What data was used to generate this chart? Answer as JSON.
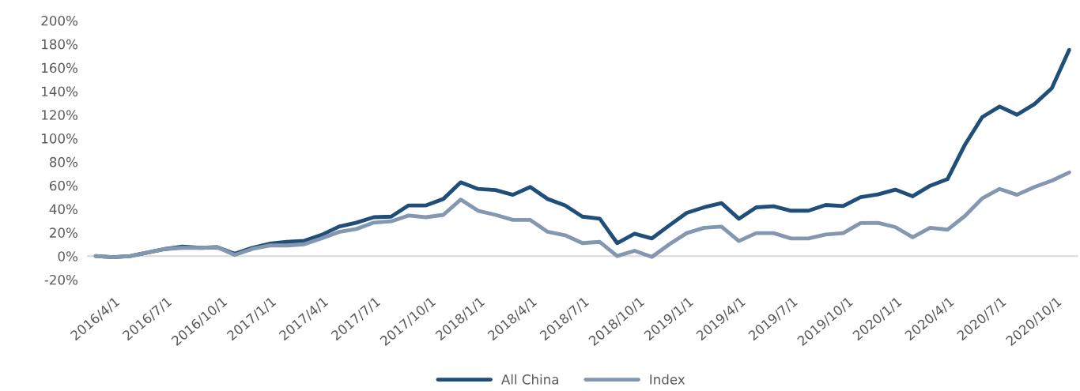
{
  "chart_data": {
    "type": "line",
    "categories": [
      "2016/4/1",
      null,
      null,
      "2016/7/1",
      null,
      null,
      "2016/10/1",
      null,
      null,
      "2017/1/1",
      null,
      null,
      "2017/4/1",
      null,
      null,
      "2017/7/1",
      null,
      null,
      "2017/10/1",
      null,
      null,
      "2018/1/1",
      null,
      null,
      "2018/4/1",
      null,
      null,
      "2018/7/1",
      null,
      null,
      "2018/10/1",
      null,
      null,
      "2019/1/1",
      null,
      null,
      "2019/4/1",
      null,
      null,
      "2019/7/1",
      null,
      null,
      "2019/10/1",
      null,
      null,
      "2020/1/1",
      null,
      null,
      "2020/4/1",
      null,
      null,
      "2020/7/1",
      null,
      null,
      "2020/10/1",
      null,
      null
    ],
    "series": [
      {
        "name": "All China",
        "color": "#1f4e79",
        "values": [
          0,
          -1,
          0,
          3,
          6,
          8,
          7,
          7.5,
          2,
          7,
          10.5,
          12,
          13,
          18,
          25,
          28.4,
          33,
          33.5,
          43,
          43,
          48.5,
          62.6,
          57,
          56,
          52,
          58.6,
          48.5,
          43,
          33.5,
          31.7,
          11,
          19,
          15,
          26,
          36.7,
          41.4,
          45,
          31.7,
          41.4,
          42.3,
          38.5,
          38.5,
          43.4,
          42.5,
          50,
          52.3,
          56.4,
          50.8,
          59.7,
          65.3,
          94.4,
          118,
          127,
          120,
          129,
          142.5,
          175
        ]
      },
      {
        "name": "Index",
        "color": "#8497b0",
        "values": [
          0,
          -1,
          0,
          3,
          6,
          7,
          7,
          7.5,
          1,
          6,
          9,
          9,
          10,
          15,
          20.5,
          23,
          28.4,
          29.5,
          34.4,
          33,
          35,
          48,
          38.5,
          35,
          30.7,
          30.7,
          20.6,
          17.7,
          11,
          12,
          0,
          4.5,
          -0.7,
          10,
          19.5,
          24,
          25,
          12.8,
          19.5,
          19.5,
          15,
          15,
          18.3,
          19.5,
          28,
          28.2,
          24.6,
          16,
          24,
          22.4,
          34,
          49,
          57,
          52,
          58.6,
          64,
          71
        ]
      }
    ],
    "ylim": [
      -20,
      200
    ],
    "yticks": [
      {
        "value": -20,
        "label": "-20%"
      },
      {
        "value": 0,
        "label": "0%"
      },
      {
        "value": 20,
        "label": "20%"
      },
      {
        "value": 40,
        "label": "40%"
      },
      {
        "value": 60,
        "label": "60%"
      },
      {
        "value": 80,
        "label": "80%"
      },
      {
        "value": 100,
        "label": "100%"
      },
      {
        "value": 120,
        "label": "120%"
      },
      {
        "value": 140,
        "label": "140%"
      },
      {
        "value": 160,
        "label": "160%"
      },
      {
        "value": 180,
        "label": "180%"
      },
      {
        "value": 200,
        "label": "200%"
      }
    ],
    "grid": false,
    "ref_lines": [
      {
        "axis": "y",
        "value": 0,
        "color": "#d9d9d9"
      }
    ],
    "legend": "bottom",
    "marker": "none",
    "line_style": "solid"
  }
}
